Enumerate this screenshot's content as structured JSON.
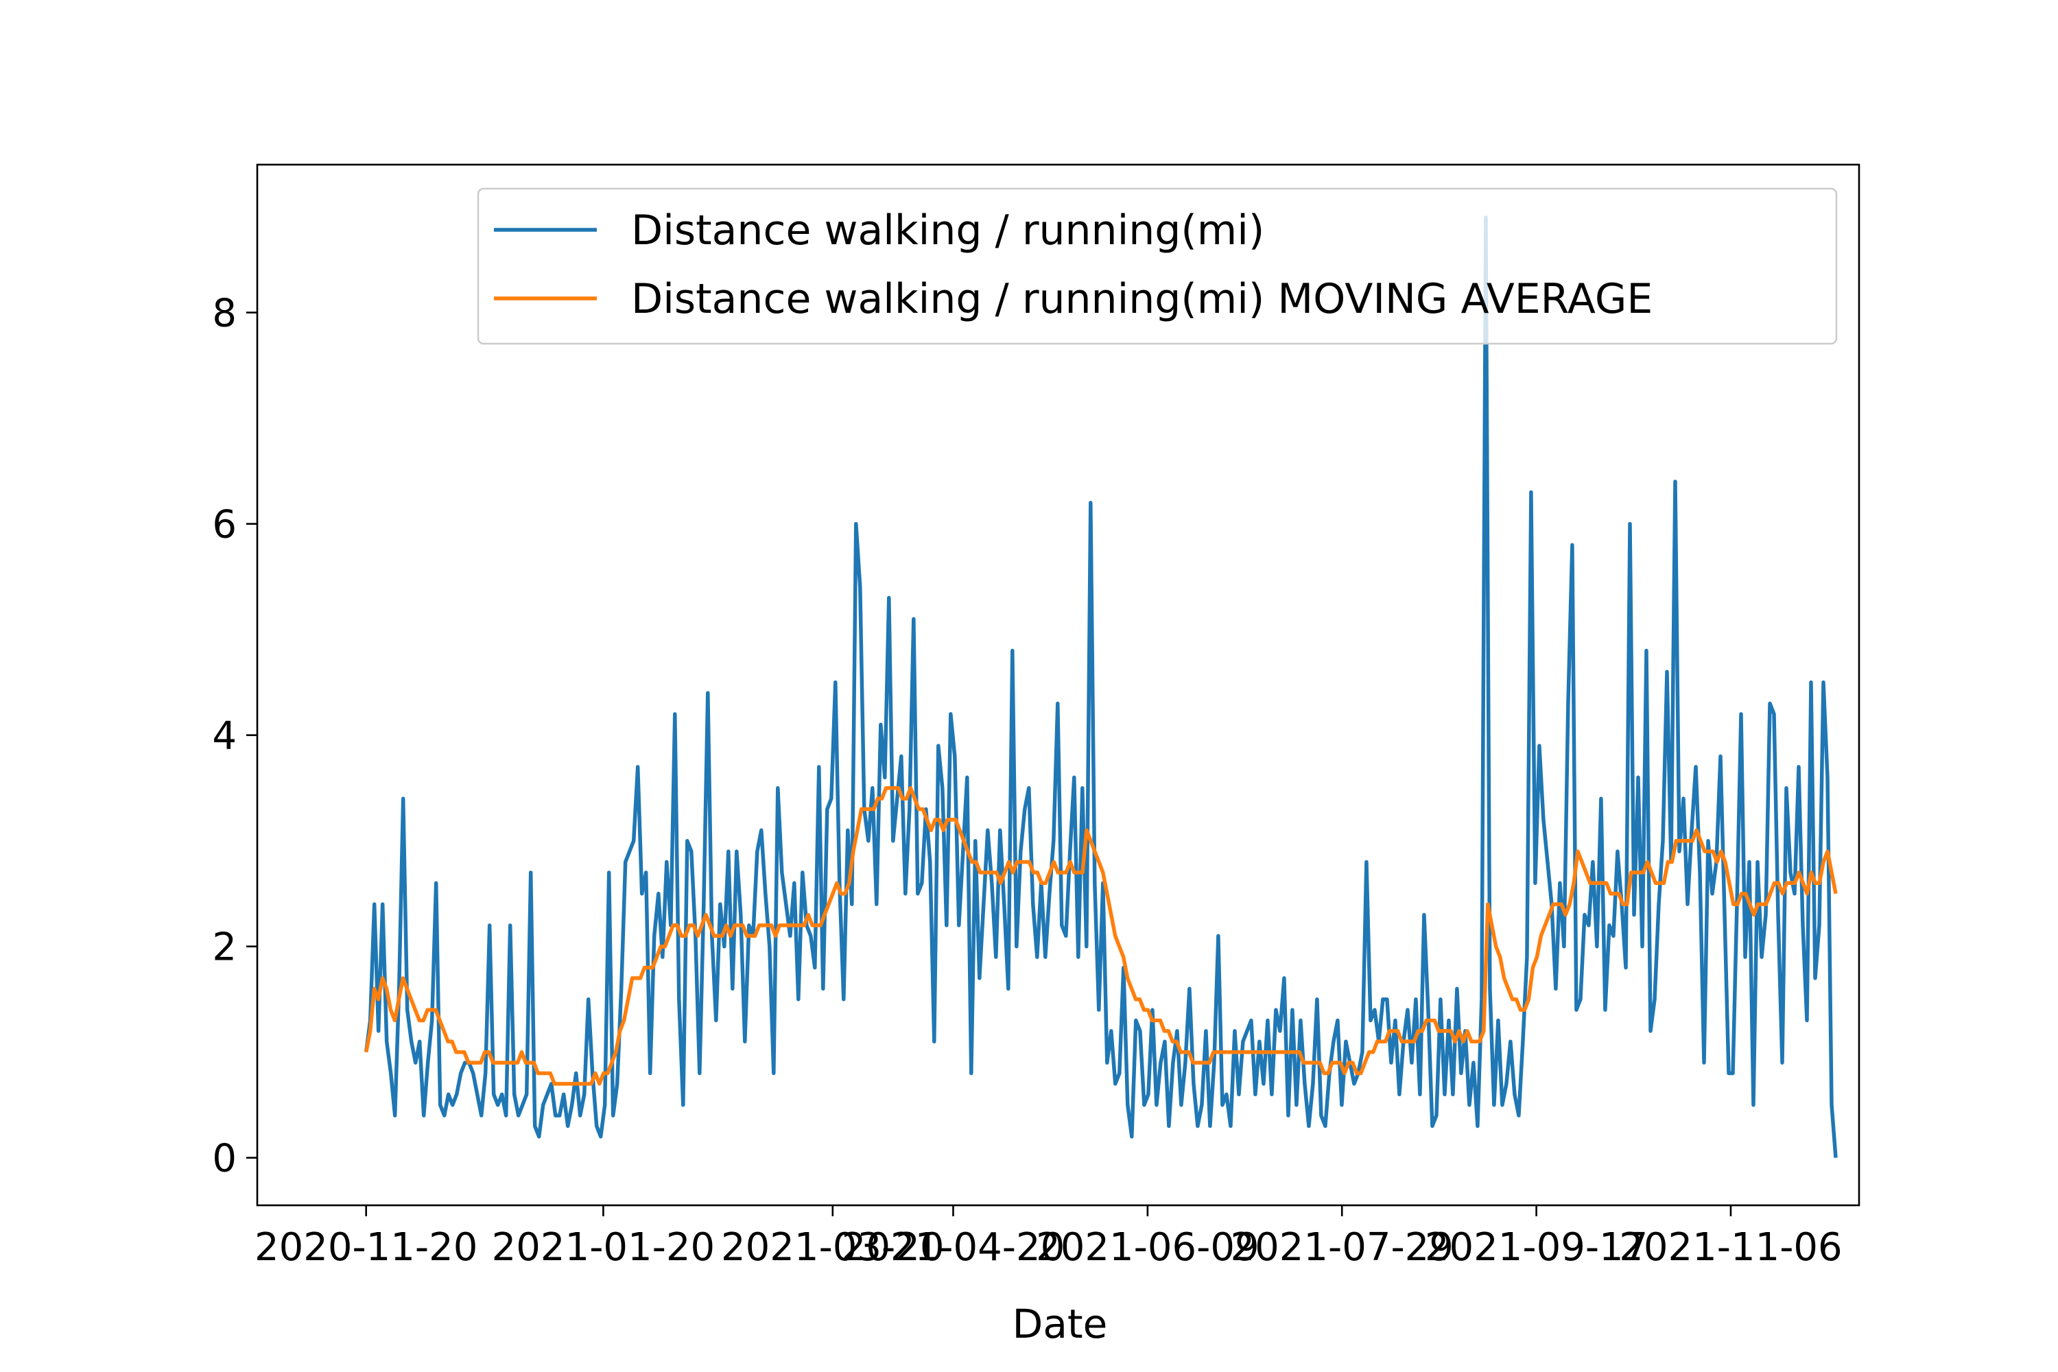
{
  "chart_data": {
    "type": "line",
    "title": "",
    "xlabel": "Date",
    "ylabel": "",
    "x_range": [
      "2020-10-23",
      "2021-12-09"
    ],
    "ylim": [
      -0.45,
      9.4
    ],
    "x_ticks": [
      "2020-11-20",
      "2021-01-20",
      "2021-03-20",
      "2021-04-20",
      "2021-06-09",
      "2021-07-29",
      "2021-09-17",
      "2021-11-06"
    ],
    "y_ticks": [
      0,
      2,
      4,
      6,
      8
    ],
    "grid": false,
    "legend_position": "top-right",
    "x_start": "2020-11-20",
    "x_end": "2021-12-03",
    "series": [
      {
        "name": "Distance walking / running(mi)",
        "color": "#1f77b4",
        "values": [
          1.0,
          1.3,
          2.4,
          1.2,
          2.4,
          1.1,
          0.8,
          0.4,
          1.6,
          3.4,
          1.4,
          1.1,
          0.9,
          1.1,
          0.4,
          0.9,
          1.3,
          2.6,
          0.5,
          0.4,
          0.6,
          0.5,
          0.6,
          0.8,
          0.9,
          0.9,
          0.8,
          0.6,
          0.4,
          0.8,
          2.2,
          0.6,
          0.5,
          0.6,
          0.4,
          2.2,
          0.6,
          0.4,
          0.5,
          0.6,
          2.7,
          0.3,
          0.2,
          0.5,
          0.6,
          0.7,
          0.4,
          0.4,
          0.6,
          0.3,
          0.5,
          0.8,
          0.4,
          0.6,
          1.5,
          0.8,
          0.3,
          0.2,
          0.5,
          2.7,
          0.4,
          0.7,
          1.6,
          2.8,
          2.9,
          3.0,
          3.7,
          2.5,
          2.7,
          0.8,
          2.1,
          2.5,
          1.9,
          2.8,
          2.2,
          4.2,
          1.5,
          0.5,
          3.0,
          2.9,
          2.1,
          0.8,
          2.4,
          4.4,
          2.1,
          1.3,
          2.4,
          2.0,
          2.9,
          1.6,
          2.9,
          2.3,
          1.1,
          2.2,
          2.1,
          2.9,
          3.1,
          2.5,
          2.0,
          0.8,
          3.5,
          2.7,
          2.4,
          2.1,
          2.6,
          1.5,
          2.7,
          2.2,
          2.1,
          1.8,
          3.7,
          1.6,
          3.3,
          3.4,
          4.5,
          2.6,
          1.5,
          3.1,
          2.4,
          6.0,
          5.4,
          3.3,
          3.0,
          3.5,
          2.4,
          4.1,
          3.6,
          5.3,
          3.0,
          3.4,
          3.8,
          2.5,
          3.3,
          5.1,
          2.5,
          2.6,
          3.3,
          2.8,
          1.1,
          3.9,
          3.5,
          2.2,
          4.2,
          3.8,
          2.2,
          2.9,
          3.6,
          0.8,
          3.0,
          1.7,
          2.4,
          3.1,
          2.6,
          1.9,
          3.1,
          2.4,
          1.6,
          4.8,
          2.0,
          2.9,
          3.3,
          3.5,
          2.4,
          1.9,
          2.6,
          1.9,
          2.5,
          3.0,
          4.3,
          2.2,
          2.1,
          2.9,
          3.6,
          1.9,
          3.5,
          2.0,
          6.2,
          2.6,
          1.4,
          2.6,
          0.9,
          1.2,
          0.7,
          0.8,
          1.8,
          0.5,
          0.2,
          1.3,
          1.2,
          0.5,
          0.6,
          1.4,
          0.5,
          0.9,
          1.1,
          0.3,
          0.9,
          1.2,
          0.5,
          0.9,
          1.6,
          0.7,
          0.3,
          0.5,
          1.2,
          0.3,
          0.9,
          2.1,
          0.5,
          0.6,
          0.3,
          1.2,
          0.6,
          1.1,
          1.2,
          1.3,
          0.6,
          1.1,
          0.7,
          1.3,
          0.6,
          1.4,
          1.2,
          1.7,
          0.4,
          1.4,
          0.5,
          1.3,
          0.7,
          0.3,
          0.7,
          1.5,
          0.4,
          0.3,
          0.8,
          1.1,
          1.3,
          0.5,
          1.1,
          0.9,
          0.7,
          0.8,
          1.0,
          2.8,
          1.3,
          1.4,
          1.1,
          1.5,
          1.5,
          0.9,
          1.3,
          0.6,
          1.1,
          1.4,
          0.9,
          1.5,
          0.6,
          2.3,
          1.4,
          0.3,
          0.4,
          1.5,
          0.6,
          1.3,
          0.6,
          1.6,
          0.8,
          1.2,
          0.5,
          0.9,
          0.3,
          1.5,
          8.9,
          1.6,
          0.5,
          1.3,
          0.5,
          0.7,
          1.1,
          0.6,
          0.4,
          1.1,
          1.9,
          6.3,
          2.6,
          3.9,
          3.2,
          2.8,
          2.4,
          1.6,
          2.6,
          2.0,
          4.3,
          5.8,
          1.4,
          1.5,
          2.3,
          2.2,
          2.8,
          2.0,
          3.4,
          1.4,
          2.2,
          2.1,
          2.9,
          2.4,
          1.8,
          6.0,
          2.3,
          3.6,
          2.0,
          4.8,
          1.2,
          1.5,
          2.4,
          3.0,
          4.6,
          2.8,
          6.4,
          2.9,
          3.4,
          2.4,
          3.1,
          3.7,
          2.7,
          0.9,
          3.0,
          2.5,
          2.8,
          3.8,
          2.3,
          0.8,
          0.8,
          2.4,
          4.2,
          1.9,
          2.8,
          0.5,
          2.8,
          1.9,
          2.3,
          4.3,
          4.2,
          2.3,
          0.9,
          3.5,
          2.7,
          2.5,
          3.7,
          2.2,
          1.3,
          4.5,
          1.7,
          2.2,
          4.5,
          3.6,
          0.5,
          0.0
        ]
      },
      {
        "name": "Distance walking / running(mi) MOVING AVERAGE",
        "color": "#ff7f0e",
        "values": [
          1.0,
          1.2,
          1.6,
          1.5,
          1.7,
          1.6,
          1.4,
          1.3,
          1.5,
          1.7,
          1.6,
          1.5,
          1.4,
          1.3,
          1.3,
          1.4,
          1.4,
          1.4,
          1.3,
          1.2,
          1.1,
          1.1,
          1.0,
          1.0,
          1.0,
          0.9,
          0.9,
          0.9,
          0.9,
          1.0,
          1.0,
          0.9,
          0.9,
          0.9,
          0.9,
          0.9,
          0.9,
          0.9,
          1.0,
          0.9,
          0.9,
          0.9,
          0.8,
          0.8,
          0.8,
          0.8,
          0.7,
          0.7,
          0.7,
          0.7,
          0.7,
          0.7,
          0.7,
          0.7,
          0.7,
          0.7,
          0.8,
          0.7,
          0.8,
          0.8,
          0.9,
          1.0,
          1.2,
          1.3,
          1.5,
          1.7,
          1.7,
          1.7,
          1.8,
          1.8,
          1.8,
          1.9,
          2.0,
          2.0,
          2.1,
          2.2,
          2.2,
          2.1,
          2.1,
          2.2,
          2.2,
          2.1,
          2.2,
          2.3,
          2.2,
          2.1,
          2.1,
          2.1,
          2.2,
          2.1,
          2.2,
          2.2,
          2.2,
          2.1,
          2.1,
          2.1,
          2.2,
          2.2,
          2.2,
          2.2,
          2.1,
          2.2,
          2.2,
          2.2,
          2.2,
          2.2,
          2.2,
          2.2,
          2.3,
          2.2,
          2.2,
          2.2,
          2.3,
          2.4,
          2.5,
          2.6,
          2.5,
          2.5,
          2.6,
          2.9,
          3.1,
          3.3,
          3.3,
          3.3,
          3.3,
          3.4,
          3.4,
          3.5,
          3.5,
          3.5,
          3.5,
          3.4,
          3.4,
          3.5,
          3.4,
          3.3,
          3.3,
          3.2,
          3.1,
          3.2,
          3.2,
          3.1,
          3.2,
          3.2,
          3.2,
          3.1,
          3.0,
          2.9,
          2.8,
          2.8,
          2.7,
          2.7,
          2.7,
          2.7,
          2.7,
          2.6,
          2.7,
          2.8,
          2.7,
          2.8,
          2.8,
          2.8,
          2.8,
          2.7,
          2.7,
          2.6,
          2.6,
          2.7,
          2.8,
          2.7,
          2.7,
          2.7,
          2.8,
          2.7,
          2.7,
          2.7,
          3.1,
          3.0,
          2.9,
          2.8,
          2.7,
          2.5,
          2.3,
          2.1,
          2.0,
          1.9,
          1.7,
          1.6,
          1.5,
          1.5,
          1.4,
          1.4,
          1.3,
          1.3,
          1.3,
          1.2,
          1.2,
          1.1,
          1.1,
          1.0,
          1.0,
          1.0,
          0.9,
          0.9,
          0.9,
          0.9,
          0.9,
          1.0,
          1.0,
          1.0,
          1.0,
          1.0,
          1.0,
          1.0,
          1.0,
          1.0,
          1.0,
          1.0,
          1.0,
          1.0,
          1.0,
          1.0,
          1.0,
          1.0,
          1.0,
          1.0,
          1.0,
          1.0,
          1.0,
          0.9,
          0.9,
          0.9,
          0.9,
          0.9,
          0.8,
          0.8,
          0.9,
          0.9,
          0.9,
          0.8,
          0.9,
          0.9,
          0.8,
          0.8,
          0.9,
          1.0,
          1.0,
          1.1,
          1.1,
          1.1,
          1.2,
          1.2,
          1.2,
          1.1,
          1.1,
          1.1,
          1.1,
          1.2,
          1.2,
          1.3,
          1.3,
          1.3,
          1.2,
          1.2,
          1.2,
          1.2,
          1.1,
          1.2,
          1.1,
          1.2,
          1.1,
          1.1,
          1.1,
          1.2,
          2.4,
          2.2,
          2.0,
          1.9,
          1.7,
          1.6,
          1.5,
          1.5,
          1.4,
          1.4,
          1.5,
          1.8,
          1.9,
          2.1,
          2.2,
          2.3,
          2.4,
          2.4,
          2.4,
          2.3,
          2.4,
          2.6,
          2.9,
          2.8,
          2.7,
          2.6,
          2.6,
          2.6,
          2.6,
          2.6,
          2.5,
          2.5,
          2.5,
          2.4,
          2.4,
          2.7,
          2.7,
          2.7,
          2.7,
          2.8,
          2.7,
          2.6,
          2.6,
          2.6,
          2.8,
          2.8,
          3.0,
          3.0,
          3.0,
          3.0,
          3.0,
          3.1,
          3.0,
          2.9,
          2.9,
          2.9,
          2.8,
          2.9,
          2.8,
          2.6,
          2.4,
          2.4,
          2.5,
          2.5,
          2.4,
          2.3,
          2.4,
          2.4,
          2.4,
          2.5,
          2.6,
          2.6,
          2.5,
          2.6,
          2.6,
          2.6,
          2.7,
          2.6,
          2.5,
          2.7,
          2.6,
          2.6,
          2.8,
          2.9,
          2.7,
          2.5
        ]
      }
    ]
  }
}
